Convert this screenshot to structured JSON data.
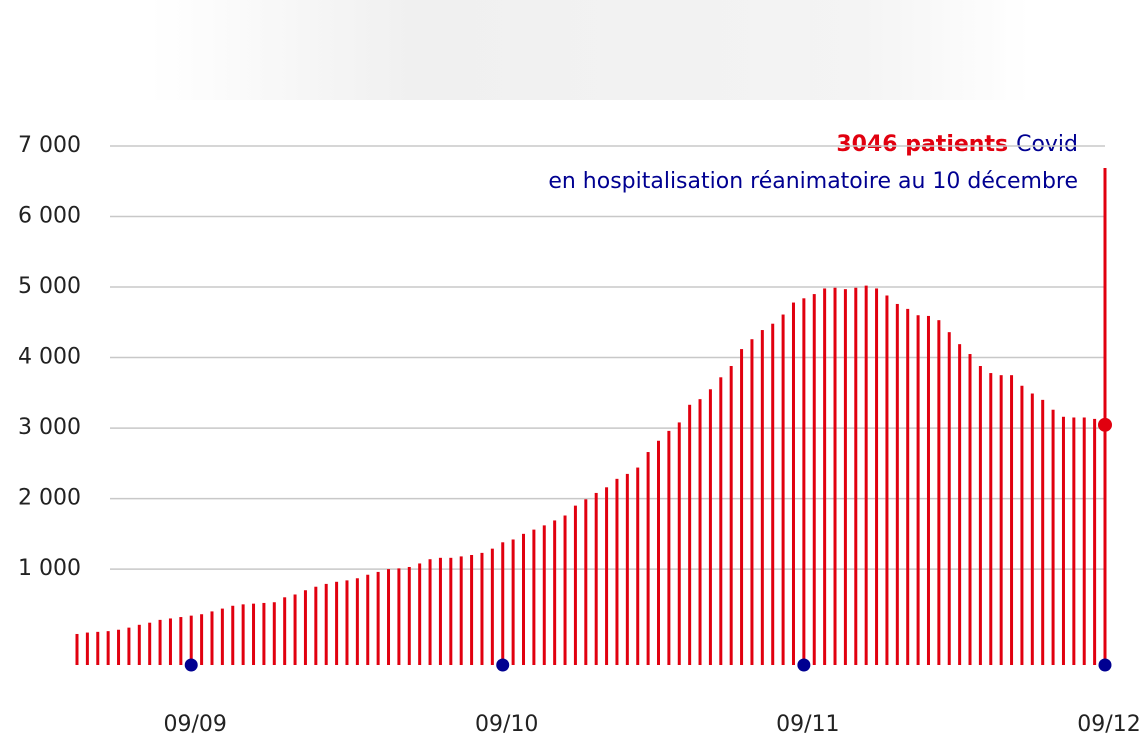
{
  "chart_data": {
    "type": "bar",
    "annotation": {
      "highlight": "3046 patients",
      "text": "Covid",
      "line2": "en hospitalisation réanimatoire au 10 décembre"
    },
    "categories": [
      null,
      null,
      null,
      null,
      null,
      null,
      null,
      null,
      null,
      null,
      null,
      "09/09",
      null,
      null,
      null,
      null,
      null,
      null,
      null,
      null,
      null,
      null,
      null,
      null,
      null,
      null,
      null,
      null,
      null,
      null,
      null,
      null,
      null,
      null,
      null,
      null,
      null,
      null,
      null,
      null,
      null,
      "09/10",
      null,
      null,
      null,
      null,
      null,
      null,
      null,
      null,
      null,
      null,
      null,
      null,
      null,
      null,
      null,
      null,
      null,
      null,
      null,
      null,
      null,
      null,
      null,
      null,
      null,
      null,
      null,
      null,
      "09/11",
      null,
      null,
      null,
      null,
      null,
      null,
      null,
      null,
      null,
      null,
      null,
      null,
      null,
      null,
      null,
      null,
      null,
      null,
      null,
      null,
      null,
      null,
      null,
      null,
      null,
      null,
      null,
      null,
      "09/12"
    ],
    "values": [
      80,
      100,
      110,
      120,
      140,
      170,
      210,
      240,
      280,
      300,
      320,
      340,
      360,
      400,
      440,
      480,
      500,
      510,
      520,
      530,
      600,
      640,
      700,
      750,
      790,
      820,
      840,
      870,
      920,
      960,
      1000,
      1010,
      1030,
      1080,
      1140,
      1160,
      1160,
      1180,
      1200,
      1230,
      1290,
      1380,
      1420,
      1500,
      1560,
      1620,
      1690,
      1760,
      1900,
      1990,
      2080,
      2160,
      2280,
      2350,
      2440,
      2660,
      2820,
      2960,
      3080,
      3330,
      3410,
      3550,
      3720,
      3880,
      4120,
      4260,
      4390,
      4480,
      4610,
      4780,
      4840,
      4900,
      4980,
      4990,
      4970,
      4990,
      5020,
      4980,
      4880,
      4760,
      4690,
      4600,
      4590,
      4530,
      4360,
      4190,
      4050,
      3880,
      3780,
      3750,
      3750,
      3600,
      3490,
      3400,
      3260,
      3160,
      3150,
      3150,
      3130,
      3046
    ],
    "color": "#e1000f",
    "highlight_color": "#e1000f",
    "text_color": "#000091",
    "ylim": [
      -360,
      7000
    ],
    "yticks": [
      {
        "value": 1000,
        "label": "1 000"
      },
      {
        "value": 2000,
        "label": "2 000"
      },
      {
        "value": 3000,
        "label": "3 000"
      },
      {
        "value": 4000,
        "label": "4 000"
      },
      {
        "value": 5000,
        "label": "5 000"
      },
      {
        "value": 6000,
        "label": "6 000"
      },
      {
        "value": 7000,
        "label": "7 000"
      }
    ],
    "grid": true
  }
}
